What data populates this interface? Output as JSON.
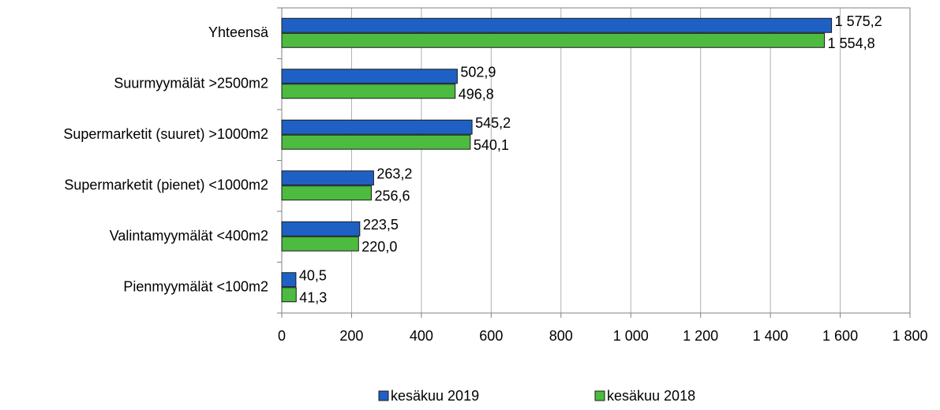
{
  "chart_data": {
    "type": "hbar",
    "categories": [
      "Yhteensä",
      "Suurmyymälät >2500m2",
      "Supermarketit (suuret) >1000m2",
      "Supermarketit (pienet) <1000m2",
      "Valintamyymälät <400m2",
      "Pienmyymälät <100m2"
    ],
    "series": [
      {
        "name": "kesäkuu 2019",
        "color": "#1f60c4",
        "values": [
          1575.2,
          502.9,
          545.2,
          263.2,
          223.5,
          40.5
        ],
        "value_labels": [
          "1 575,2",
          "502,9",
          "545,2",
          "263,2",
          "223,5",
          "40,5"
        ]
      },
      {
        "name": "kesäkuu 2018",
        "color": "#4dbb3f",
        "values": [
          1554.8,
          496.8,
          540.1,
          256.6,
          220.0,
          41.3
        ],
        "value_labels": [
          "1 554,8",
          "496,8",
          "540,1",
          "256,6",
          "220,0",
          "41,3"
        ]
      }
    ],
    "xlim": [
      0,
      1800
    ],
    "xticks": [
      0,
      200,
      400,
      600,
      800,
      {
        "value": 1000,
        "label": "1 000"
      },
      {
        "value": 1200,
        "label": "1 200"
      },
      {
        "value": 1400,
        "label": "1 400"
      },
      {
        "value": 1600,
        "label": "1 600"
      },
      {
        "value": 1800,
        "label": "1 800"
      }
    ],
    "grid": true,
    "legend": "bottom"
  }
}
